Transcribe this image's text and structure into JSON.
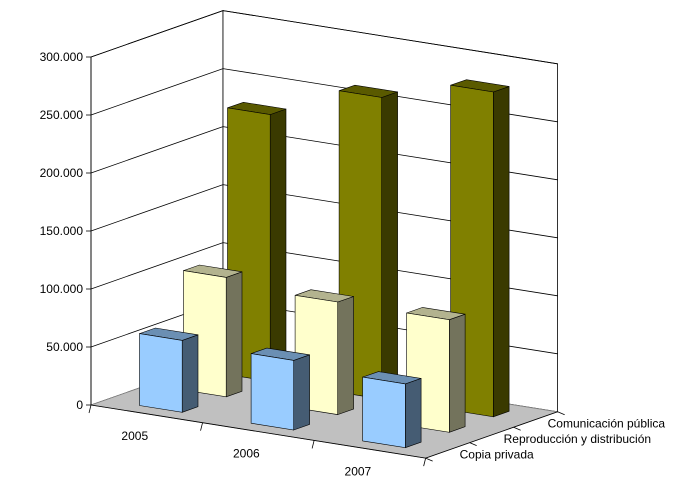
{
  "chart_data": {
    "type": "bar",
    "style": "3d-column",
    "title": "",
    "xlabel": "",
    "ylabel": "",
    "categories": [
      "2005",
      "2006",
      "2007"
    ],
    "yticks": [
      "0",
      "50.000",
      "100.000",
      "150.000",
      "200.000",
      "250.000",
      "300.000"
    ],
    "ylim": [
      0,
      300000
    ],
    "grid": true,
    "series": [
      {
        "name": "Copia privada",
        "color": "#99ccff",
        "values": [
          62000,
          60000,
          55000
        ]
      },
      {
        "name": "Reproducción y distribución",
        "color": "#ffffcc",
        "values": [
          103000,
          97000,
          97000
        ]
      },
      {
        "name": "Comunicación pública",
        "color": "#808000",
        "values": [
          230000,
          260000,
          280000
        ]
      }
    ]
  }
}
